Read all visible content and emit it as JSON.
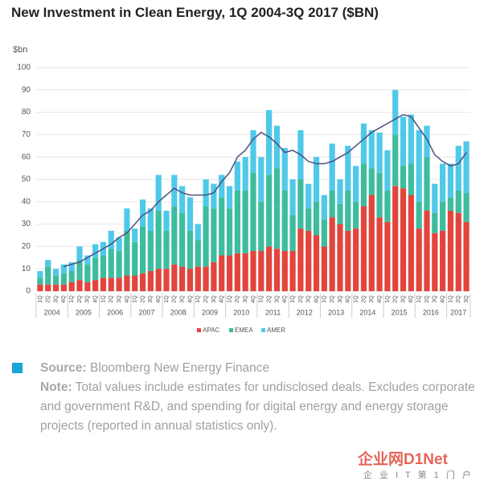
{
  "chart_data": {
    "type": "bar",
    "stacked": true,
    "title": "New Investment in Clean Energy, 1Q 2004-3Q 2017 ($BN)",
    "y_label": "$bn",
    "categories": [
      "1Q",
      "2Q",
      "3Q",
      "4Q",
      "1Q",
      "2Q",
      "3Q",
      "4Q",
      "1Q",
      "2Q",
      "3Q",
      "4Q",
      "1Q",
      "2Q",
      "3Q",
      "4Q",
      "1Q",
      "2Q",
      "3Q",
      "4Q",
      "1Q",
      "2Q",
      "3Q",
      "4Q",
      "1Q",
      "2Q",
      "3Q",
      "4Q",
      "1Q",
      "2Q",
      "3Q",
      "4Q",
      "1Q",
      "2Q",
      "3Q",
      "4Q",
      "1Q",
      "2Q",
      "3Q",
      "4Q",
      "1Q",
      "2Q",
      "3Q",
      "4Q",
      "1Q",
      "2Q",
      "3Q",
      "4Q",
      "1Q",
      "2Q",
      "3Q",
      "4Q",
      "1Q",
      "2Q",
      "3Q"
    ],
    "years": [
      "2004",
      "2005",
      "2006",
      "2007",
      "2008",
      "2009",
      "2010",
      "2011",
      "2012",
      "2013",
      "2014",
      "2015",
      "2016",
      "2017"
    ],
    "series": [
      {
        "name": "APAC",
        "color": "#e2453c",
        "values": [
          3,
          3,
          3,
          3,
          4,
          5,
          4,
          5,
          6,
          6,
          6,
          7,
          7,
          8,
          9,
          10,
          10,
          12,
          11,
          10,
          11,
          11,
          13,
          16,
          16,
          17,
          17,
          18,
          18,
          20,
          19,
          18,
          18,
          28,
          27,
          25,
          20,
          33,
          30,
          27,
          28,
          38,
          43,
          33,
          31,
          47,
          46,
          43,
          28,
          36,
          26,
          27,
          36,
          35,
          31
        ]
      },
      {
        "name": "EMEA",
        "color": "#3dbc9e",
        "values": [
          3,
          8,
          4,
          5,
          5,
          9,
          8,
          10,
          10,
          13,
          12,
          20,
          15,
          21,
          18,
          26,
          17,
          26,
          24,
          17,
          12,
          27,
          24,
          26,
          21,
          28,
          28,
          35,
          22,
          32,
          36,
          27,
          16,
          22,
          10,
          15,
          12,
          12,
          9,
          18,
          12,
          19,
          12,
          20,
          14,
          23,
          10,
          14,
          12,
          24,
          9,
          13,
          6,
          10,
          13
        ]
      },
      {
        "name": "AMER",
        "color": "#4fc9ea",
        "values": [
          3,
          3,
          3,
          4,
          4,
          6,
          4,
          6,
          6,
          8,
          6,
          10,
          6,
          12,
          10,
          16,
          9,
          14,
          12,
          15,
          7,
          12,
          11,
          10,
          10,
          13,
          15,
          19,
          20,
          29,
          19,
          19,
          16,
          22,
          11,
          20,
          11,
          21,
          11,
          20,
          16,
          18,
          17,
          18,
          18,
          20,
          22,
          22,
          32,
          14,
          13,
          17,
          15,
          20,
          23
        ]
      }
    ],
    "trend": {
      "color": "#4d4f7c",
      "values": [
        null,
        null,
        null,
        11,
        12,
        13,
        15,
        17,
        19,
        21,
        24,
        26,
        30,
        34,
        36,
        40,
        43,
        46,
        44,
        43,
        43,
        43,
        44,
        49,
        53,
        60,
        63,
        68,
        71,
        69,
        66,
        62,
        63,
        61,
        58,
        57,
        57,
        58,
        60,
        62,
        65,
        68,
        71,
        73,
        75,
        77,
        79,
        78,
        73,
        68,
        61,
        58,
        56,
        57,
        62
      ]
    },
    "ylim": [
      0,
      100
    ],
    "yticks": [
      0,
      10,
      20,
      30,
      40,
      50,
      60,
      70,
      80,
      90,
      100
    ],
    "legend": "bottom"
  },
  "notes": {
    "source_label": "Source:",
    "source": "Bloomberg New Energy Finance",
    "note_label": "Note:",
    "note": "Total values include estimates for undisclosed deals. Excludes corporate and government R&D, and spending for digital energy and energy storage projects (reported in annual statistics only)."
  },
  "watermark": {
    "brand": "企业网D1Net",
    "tagline": "企 业 I T 第 1 门 户"
  }
}
